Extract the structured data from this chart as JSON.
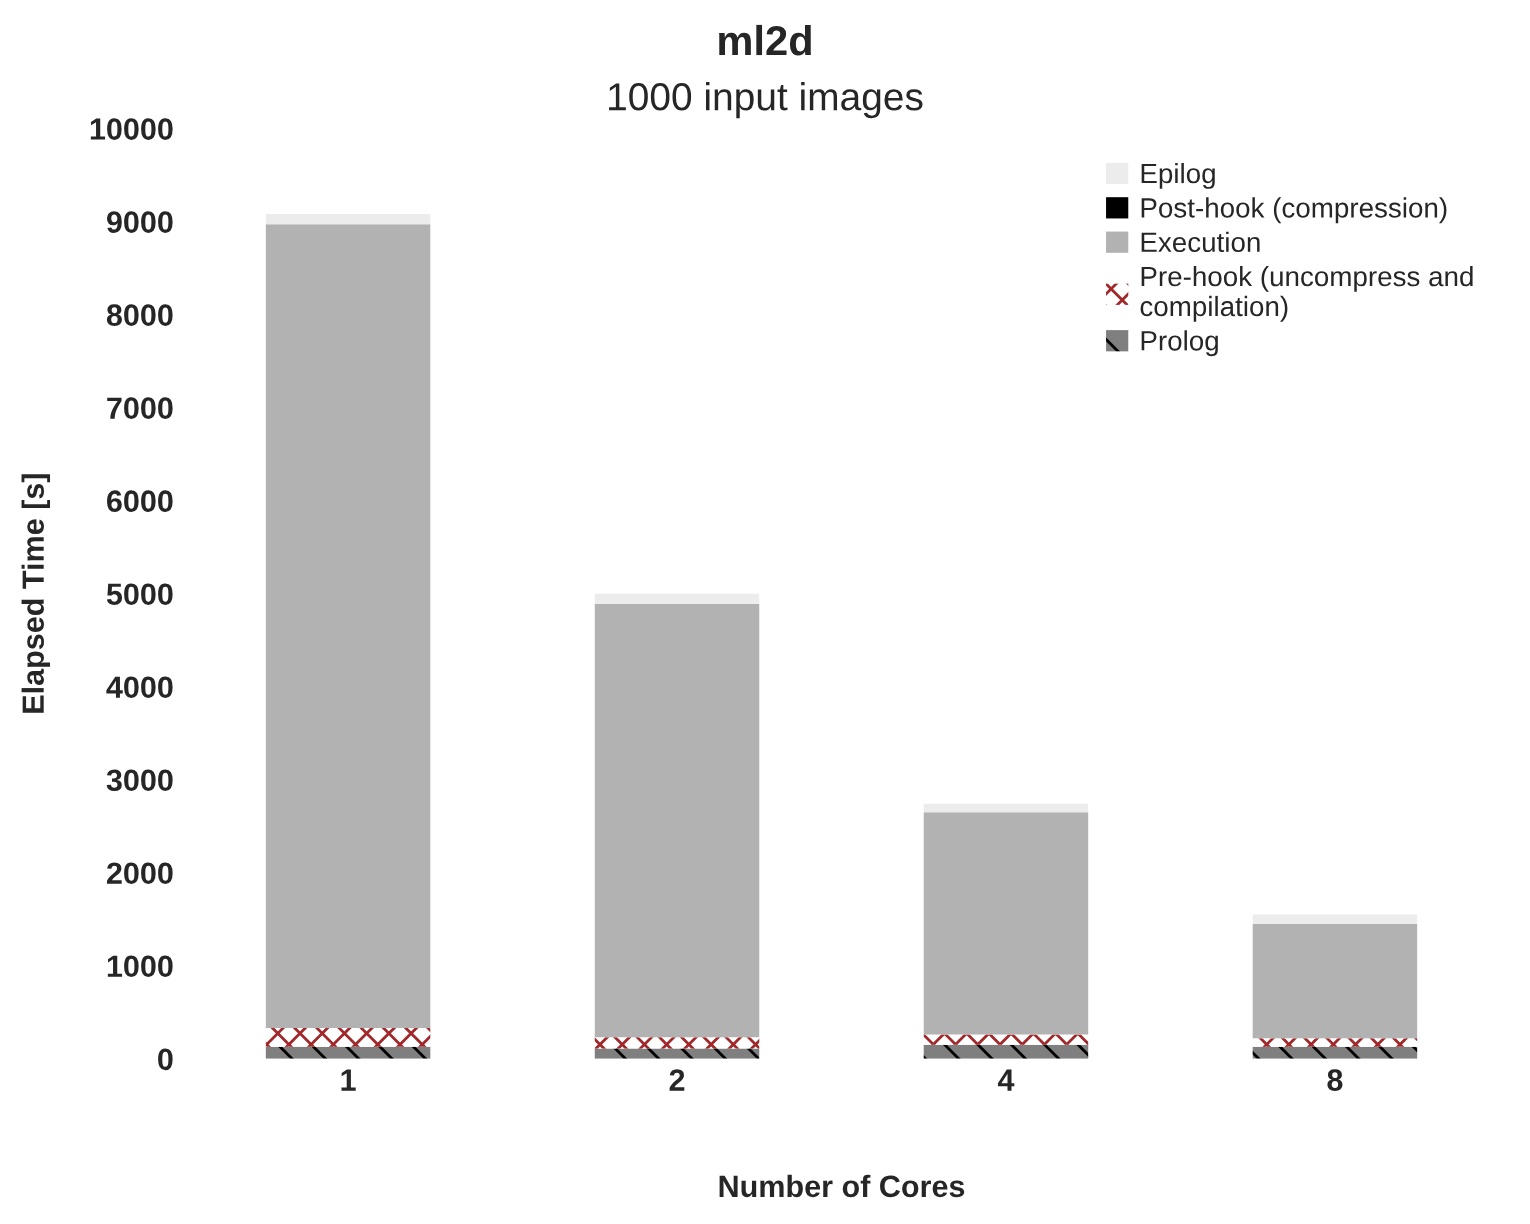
{
  "chart_data": {
    "type": "bar",
    "title": "ml2d",
    "subtitle": "1000 input images",
    "xlabel": "Number of Cores",
    "ylabel": "Elapsed Time [s]",
    "categories": [
      "1",
      "2",
      "4",
      "8"
    ],
    "stacked": true,
    "series": [
      {
        "name": "Prolog",
        "color": "#7f7f7f",
        "values": [
          130,
          110,
          150,
          130
        ]
      },
      {
        "name": "Pre-hook (uncompress and compilation)",
        "color": "#a0282a",
        "values": [
          200,
          120,
          110,
          90
        ]
      },
      {
        "name": "Execution",
        "color": "#b2b2b2",
        "values": [
          8640,
          4660,
          2390,
          1230
        ]
      },
      {
        "name": "Post-hook (compression)",
        "color": "#000000",
        "values": [
          0,
          0,
          0,
          0
        ]
      },
      {
        "name": "Epilog",
        "color": "#ececec",
        "values": [
          110,
          110,
          90,
          100
        ]
      }
    ],
    "ylim": [
      0,
      10000
    ],
    "yticks": [
      0,
      1000,
      2000,
      3000,
      4000,
      5000,
      6000,
      7000,
      8000,
      9000,
      10000
    ],
    "grid": false,
    "legend": "top right"
  }
}
